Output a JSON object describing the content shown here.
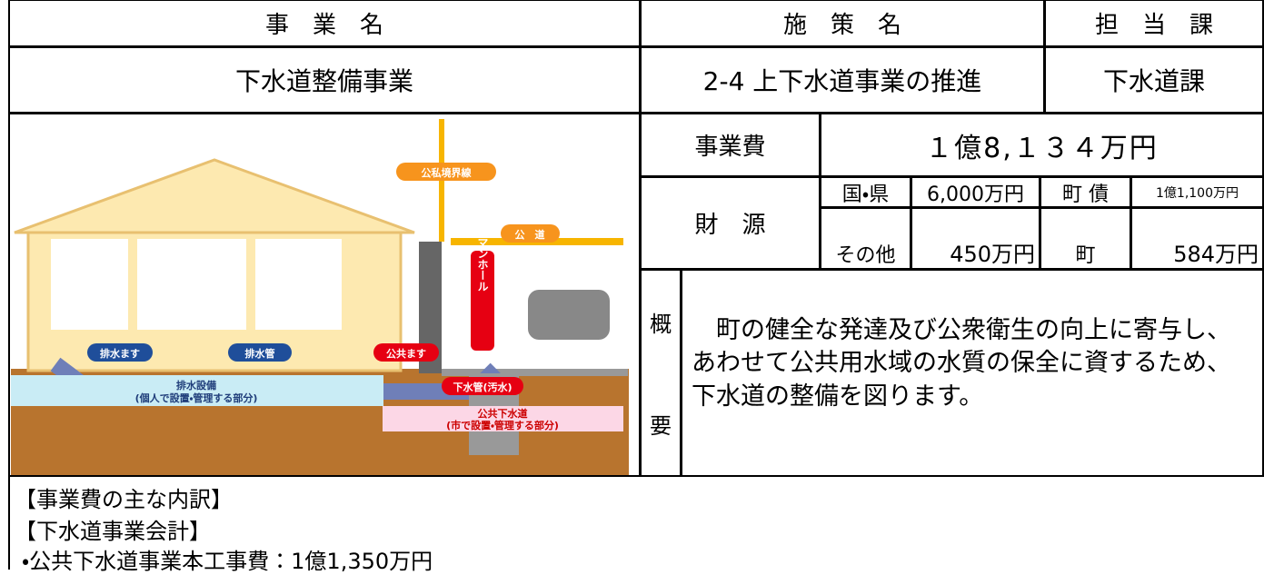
{
  "header": {
    "project_name_label": "事　業　名",
    "policy_name_label": "施　策　名",
    "department_label": "担　当　課"
  },
  "row": {
    "project_name": "下水道整備事業",
    "policy_name": "2-4 上下水道事業の推進",
    "department": "下水道課"
  },
  "cost": {
    "label": "事業費",
    "value": "１億8,１３４万円"
  },
  "funding": {
    "label": "財　源",
    "items": [
      {
        "label": "国・県",
        "value": "6,000万円"
      },
      {
        "label": "町 債",
        "value": "1億1,100万円"
      },
      {
        "label": "その他",
        "value": "450万円"
      },
      {
        "label": "町",
        "value": "584万円"
      }
    ]
  },
  "summary": {
    "label_top": "概",
    "label_bottom": "要",
    "text": "　町の健全な発達及び公衆衛生の向上に寄与し、あわせて公共用水域の水質の保全に資するため、下水道の整備を図ります。"
  },
  "breakdown": {
    "title": "【事業費の主な内訳】",
    "account": "【下水道事業会計】",
    "items": [
      "・公共下水道事業本工事費：1億1,350万円"
    ]
  },
  "diagram": {
    "boundary": "公私境界線",
    "road": "公　道",
    "manhole": "マンホール",
    "drain_basin": "排水ます",
    "drain_pipe": "排水管",
    "public_basin": "公共ます",
    "sewer_pipe": "下水管(汚水)",
    "private_facility": "排水設備",
    "private_note": "(個人で設置・管理する部分)",
    "public_sewer": "公共下水道",
    "public_note": "(市で設置・管理する部分)"
  }
}
